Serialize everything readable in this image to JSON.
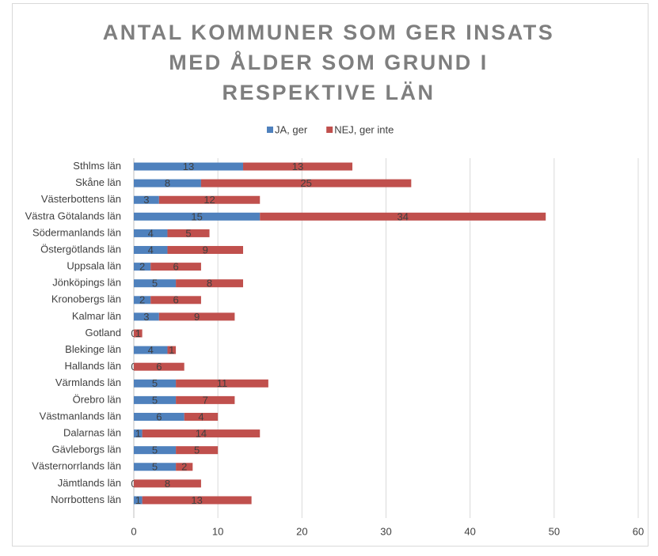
{
  "chart_data": {
    "type": "stacked-bar-horizontal",
    "title": "ANTAL KOMMUNER SOM GER INSATS MED ÅLDER SOM GRUND I RESPEKTIVE LÄN",
    "categories": [
      "Sthlms län",
      "Skåne län",
      "Västerbottens län",
      "Västra Götalands län",
      "Södermanlands län",
      "Östergötlands län",
      "Uppsala län",
      "Jönköpings län",
      "Kronobergs län",
      "Kalmar län",
      "Gotland",
      "Blekinge län",
      "Hallands län",
      "Värmlands län",
      "Örebro län",
      "Västmanlands län",
      "Dalarnas län",
      "Gävleborgs län",
      "Västernorrlands län",
      "Jämtlands län",
      "Norrbottens län"
    ],
    "series": [
      {
        "name": "JA, ger",
        "color": "#4f81bd",
        "values": [
          13,
          8,
          3,
          15,
          4,
          4,
          2,
          5,
          2,
          3,
          0,
          4,
          0,
          5,
          5,
          6,
          1,
          5,
          5,
          0,
          1
        ]
      },
      {
        "name": "NEJ, ger inte",
        "color": "#c0504d",
        "values": [
          13,
          25,
          12,
          34,
          5,
          9,
          6,
          8,
          6,
          9,
          1,
          1,
          6,
          11,
          7,
          4,
          14,
          5,
          2,
          8,
          13
        ]
      }
    ],
    "xlim": [
      0,
      60
    ],
    "xticks": [
      0,
      10,
      20,
      30,
      40,
      50,
      60
    ],
    "grid": true,
    "legend": "top"
  }
}
